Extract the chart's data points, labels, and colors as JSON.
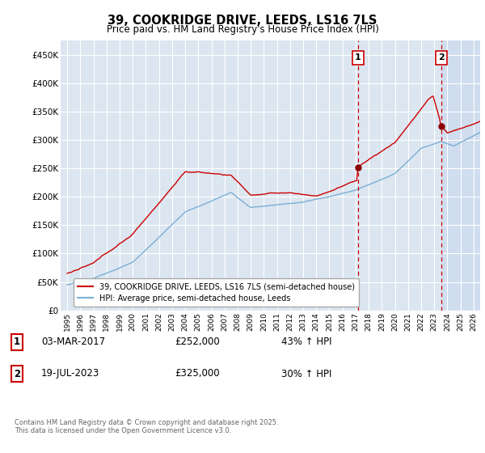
{
  "title": "39, COOKRIDGE DRIVE, LEEDS, LS16 7LS",
  "subtitle": "Price paid vs. HM Land Registry's House Price Index (HPI)",
  "ylim": [
    0,
    475000
  ],
  "yticks": [
    0,
    50000,
    100000,
    150000,
    200000,
    250000,
    300000,
    350000,
    400000,
    450000
  ],
  "ytick_labels": [
    "£0",
    "£50K",
    "£100K",
    "£150K",
    "£200K",
    "£250K",
    "£300K",
    "£350K",
    "£400K",
    "£450K"
  ],
  "bg_color": "#dce6f1",
  "bg_color_highlight": "#c8d8ee",
  "grid_color": "#ffffff",
  "line1_color": "#cc0000",
  "line2_color": "#7bafd4",
  "vline_color": "#cc0000",
  "transaction1": {
    "date": "03-MAR-2017",
    "price": 252000,
    "hpi_pct": "43%",
    "label": "1",
    "year": 2017.17
  },
  "transaction2": {
    "date": "19-JUL-2023",
    "price": 325000,
    "hpi_pct": "30%",
    "label": "2",
    "year": 2023.54
  },
  "legend_line1": "39, COOKRIDGE DRIVE, LEEDS, LS16 7LS (semi-detached house)",
  "legend_line2": "HPI: Average price, semi-detached house, Leeds",
  "footer": "Contains HM Land Registry data © Crown copyright and database right 2025.\nThis data is licensed under the Open Government Licence v3.0.",
  "table_rows": [
    {
      "num": "1",
      "date": "03-MAR-2017",
      "price": "£252,000",
      "hpi": "43% ↑ HPI"
    },
    {
      "num": "2",
      "date": "19-JUL-2023",
      "price": "£325,000",
      "hpi": "30% ↑ HPI"
    }
  ],
  "xlim_start": 1994.5,
  "xlim_end": 2026.5
}
